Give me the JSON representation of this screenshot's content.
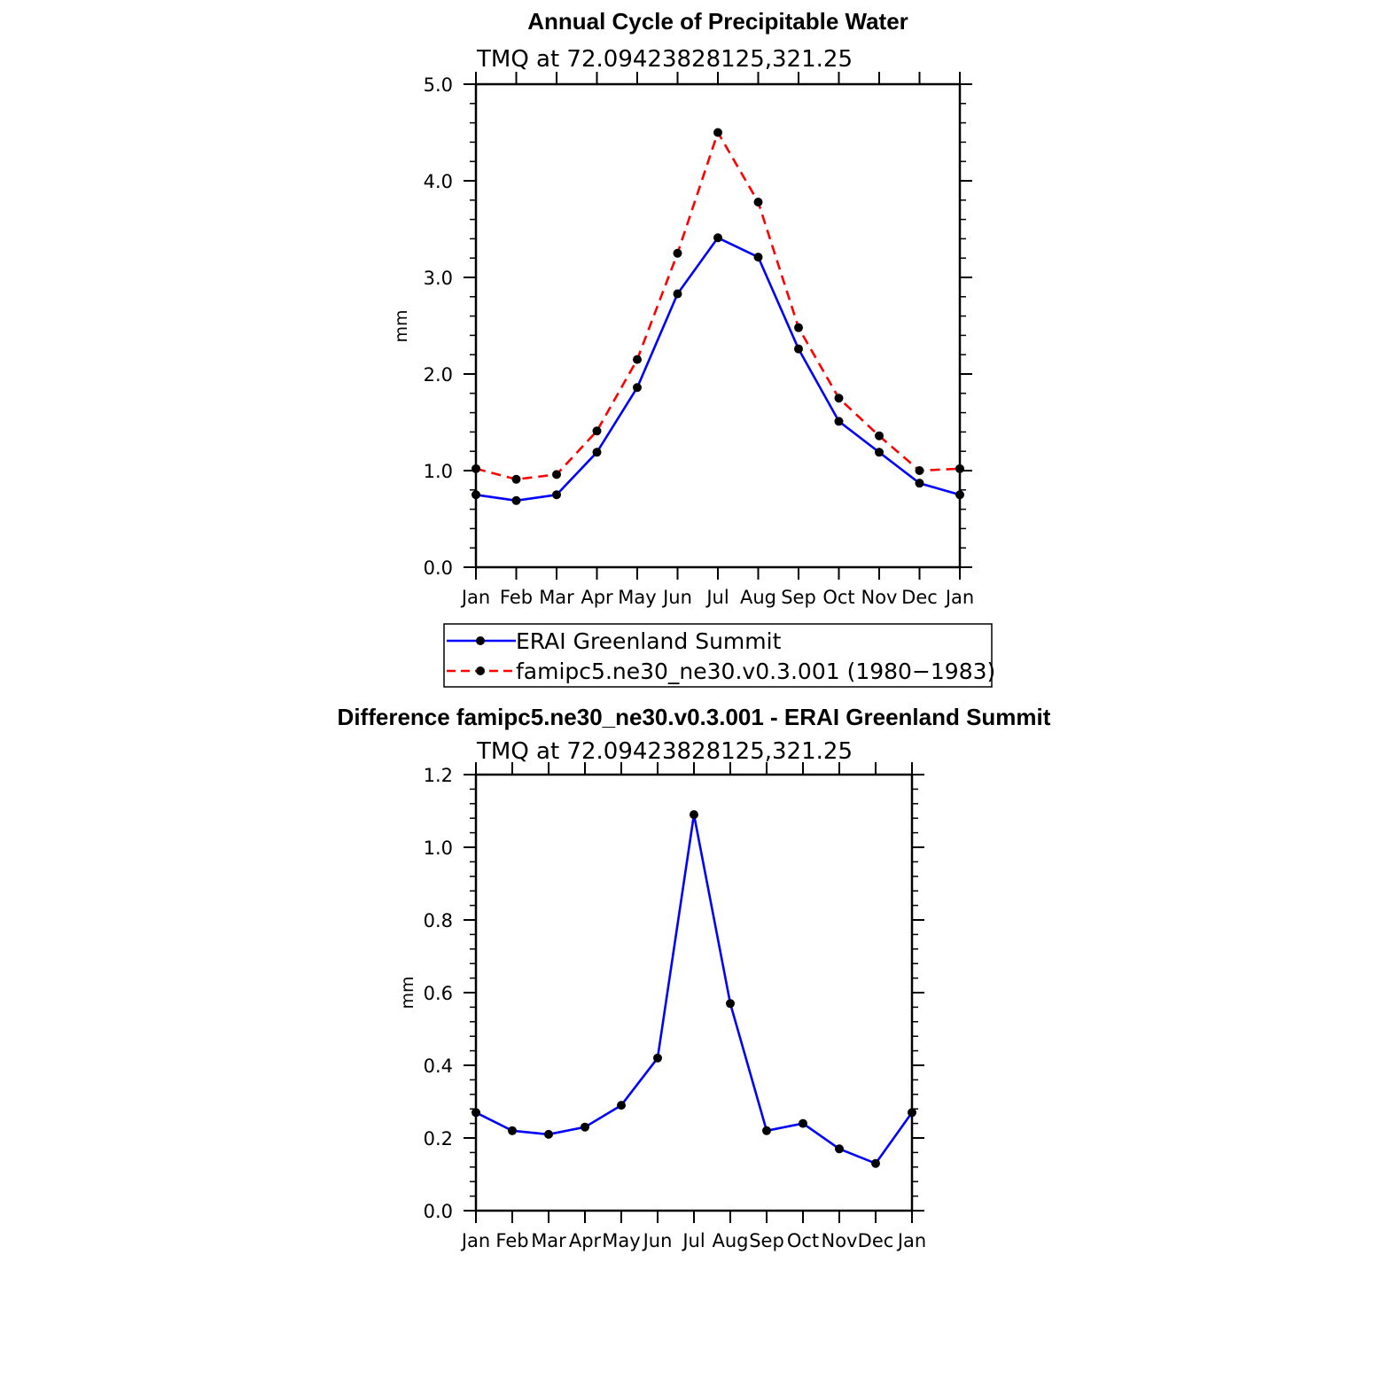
{
  "chart_data": [
    {
      "type": "line",
      "title": "Annual Cycle of Precipitable Water",
      "subtitle": "TMQ at 72.09423828125,321.25",
      "xlabel": "",
      "ylabel": "mm",
      "categories": [
        "Jan",
        "Feb",
        "Mar",
        "Apr",
        "May",
        "Jun",
        "Jul",
        "Aug",
        "Sep",
        "Oct",
        "Nov",
        "Dec",
        "Jan"
      ],
      "ylim": [
        0,
        5
      ],
      "yticks": [
        "0.0",
        "1.0",
        "2.0",
        "3.0",
        "4.0",
        "5.0"
      ],
      "series": [
        {
          "name": "ERAI Greenland Summit",
          "color": "#0000ff",
          "dash": "solid",
          "values": [
            0.75,
            0.69,
            0.75,
            1.19,
            1.86,
            2.83,
            3.41,
            3.21,
            2.26,
            1.51,
            1.19,
            0.87,
            0.75
          ]
        },
        {
          "name": "famipc5.ne30_ne30.v0.3.001 (1980−1983)",
          "color": "#ff0000",
          "dash": "dashed",
          "values": [
            1.02,
            0.91,
            0.96,
            1.41,
            2.15,
            3.25,
            4.5,
            3.78,
            2.48,
            1.75,
            1.36,
            1.0,
            1.02
          ]
        }
      ],
      "legend": "below"
    },
    {
      "type": "line",
      "title": "Difference famipc5.ne30_ne30.v0.3.001 - ERAI Greenland Summit",
      "subtitle": "TMQ at 72.09423828125,321.25",
      "xlabel": "",
      "ylabel": "mm",
      "categories": [
        "Jan",
        "Feb",
        "Mar",
        "Apr",
        "May",
        "Jun",
        "Jul",
        "Aug",
        "Sep",
        "Oct",
        "Nov",
        "Dec",
        "Jan"
      ],
      "ylim": [
        0,
        1.2
      ],
      "yticks": [
        "0.0",
        "0.2",
        "0.4",
        "0.6",
        "0.8",
        "1.0",
        "1.2"
      ],
      "series": [
        {
          "color": "#0000ff",
          "dash": "solid",
          "values": [
            0.27,
            0.22,
            0.21,
            0.23,
            0.29,
            0.42,
            1.09,
            0.57,
            0.22,
            0.24,
            0.17,
            0.13,
            0.27
          ]
        }
      ]
    }
  ]
}
